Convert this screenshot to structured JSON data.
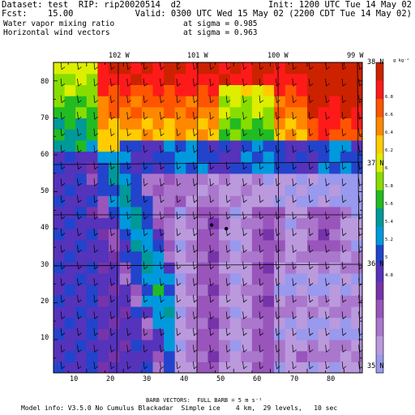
{
  "header": {
    "dataset_line": "Dataset: test  RIP: rip20020514  d2",
    "init_line": "Init: 1200 UTC Tue 14 May 02",
    "fcst_line": "Fcst:    15.00",
    "valid_line": "Valid: 0300 UTC Wed 15 May 02 (2200 CDT Tue 14 May 02)",
    "field1_line": "Water vapor mixing ratio",
    "field1_level": "at sigma = 0.985",
    "field2_line": "Horizontal wind vectors",
    "field2_level": "at sigma = 0.963"
  },
  "footer": {
    "barb_line": "BARB VECTORS:  FULL BARB = 5 m s⁻¹",
    "model_line": "Model info: V3.5.0 No Cumulus Blackadar  Simple ice    4 km,  29 levels,   10 sec"
  },
  "chart_data": {
    "type": "heatmap",
    "x_ticks": [
      "10",
      "20",
      "30",
      "40",
      "50",
      "60",
      "70",
      "80"
    ],
    "y_ticks": [
      "10",
      "20",
      "30",
      "40",
      "50",
      "60",
      "70",
      "80"
    ],
    "longitude_labels": [
      "102 W",
      "101 W",
      "100 W",
      "99 W"
    ],
    "latitude_labels": [
      "38 N",
      "37 N",
      "36 N",
      "35 N"
    ],
    "xlim": [
      1,
      85
    ],
    "ylim": [
      1,
      85
    ],
    "colorbar": {
      "unit": "g kg⁻¹",
      "labels": [
        "6.8",
        "6.6",
        "6.4",
        "6.2",
        "6",
        "5.8",
        "5.6",
        "5.4",
        "5.2",
        "5",
        "4.8"
      ],
      "colors": [
        "#cc2200",
        "#ff1a1a",
        "#ff5500",
        "#ff8800",
        "#ffcc00",
        "#ddee00",
        "#88dd00",
        "#22bb22",
        "#009999",
        "#0099dd",
        "#2244cc",
        "#5533bb",
        "#7733aa",
        "#9955bb",
        "#aa77cc",
        "#bb99dd",
        "#9999ee"
      ]
    }
  }
}
